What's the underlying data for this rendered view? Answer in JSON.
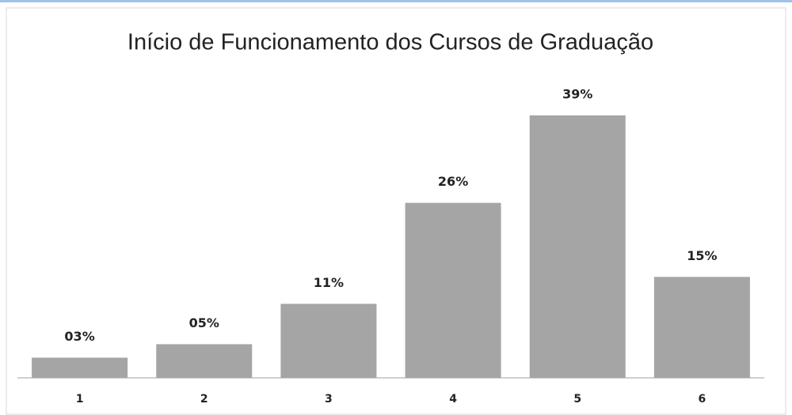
{
  "chart_data": {
    "type": "bar",
    "title": "Início de Funcionamento dos Cursos de Graduação",
    "categories": [
      "1",
      "2",
      "3",
      "4",
      "5",
      "6"
    ],
    "values": [
      3,
      5,
      11,
      26,
      39,
      15
    ],
    "value_labels": [
      "03%",
      "05%",
      "11%",
      "26%",
      "39%",
      "15%"
    ],
    "color": "#a5a5a5"
  }
}
